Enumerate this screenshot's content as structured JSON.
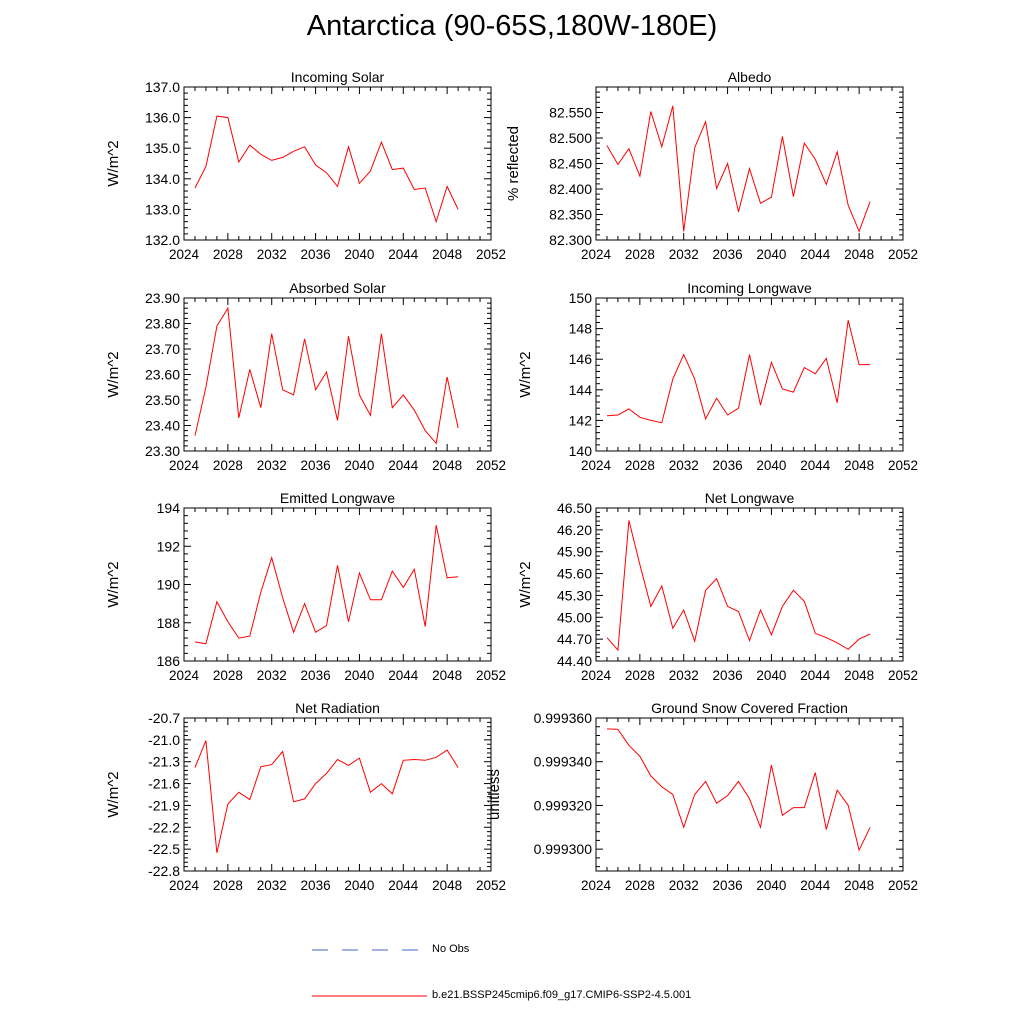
{
  "figure_title": "Antarctica (90-65S,180W-180E)",
  "legend": {
    "obs_label": "No Obs",
    "model_label": "b.e21.BSSP245cmip6.f09_g17.CMIP6-SSP2-4.5.001",
    "obs_color": "#4466cc",
    "model_color": "#ff0000"
  },
  "chart_data": [
    {
      "type": "line",
      "title": "Incoming Solar",
      "ylabel": "W/m^2",
      "xlim": [
        2024,
        2052
      ],
      "ylim": [
        132.0,
        137.0
      ],
      "xticks": [
        "2024",
        "2028",
        "2032",
        "2036",
        "2040",
        "2044",
        "2048",
        "2052"
      ],
      "yticks": [
        "132.0",
        "133.0",
        "134.0",
        "135.0",
        "136.0",
        "137.0"
      ],
      "series": [
        {
          "x": [
            2025,
            2026,
            2027,
            2028,
            2029,
            2030,
            2031,
            2032,
            2033,
            2034,
            2035,
            2036,
            2037,
            2038,
            2039,
            2040,
            2041,
            2042,
            2043,
            2044,
            2045,
            2046,
            2047,
            2048,
            2049
          ],
          "values": [
            133.7,
            134.4,
            136.05,
            136.0,
            134.55,
            135.1,
            134.8,
            134.6,
            134.7,
            134.9,
            135.05,
            134.45,
            134.2,
            133.75,
            135.05,
            133.85,
            134.25,
            135.2,
            134.3,
            134.35,
            133.65,
            133.7,
            132.6,
            133.75,
            133.0
          ]
        }
      ]
    },
    {
      "type": "line",
      "title": "Albedo",
      "ylabel": "% reflected",
      "xlim": [
        2024,
        2052
      ],
      "ylim": [
        82.3,
        82.6
      ],
      "xticks": [
        "2024",
        "2028",
        "2032",
        "2036",
        "2040",
        "2044",
        "2048",
        "2052"
      ],
      "yticks": [
        "82.300",
        "82.350",
        "82.400",
        "82.450",
        "82.500",
        "82.550"
      ],
      "series": [
        {
          "x": [
            2025,
            2026,
            2027,
            2028,
            2029,
            2030,
            2031,
            2032,
            2033,
            2034,
            2035,
            2036,
            2037,
            2038,
            2039,
            2040,
            2041,
            2042,
            2043,
            2044,
            2045,
            2046,
            2047,
            2048,
            2049
          ],
          "values": [
            82.485,
            82.448,
            82.479,
            82.425,
            82.552,
            82.483,
            82.563,
            82.317,
            82.481,
            82.532,
            82.401,
            82.45,
            82.355,
            82.44,
            82.372,
            82.384,
            82.503,
            82.385,
            82.49,
            82.458,
            82.409,
            82.473,
            82.368,
            82.317,
            82.375
          ]
        }
      ]
    },
    {
      "type": "line",
      "title": "Absorbed Solar",
      "ylabel": "W/m^2",
      "xlim": [
        2024,
        2052
      ],
      "ylim": [
        23.3,
        23.9
      ],
      "xticks": [
        "2024",
        "2028",
        "2032",
        "2036",
        "2040",
        "2044",
        "2048",
        "2052"
      ],
      "yticks": [
        "23.30",
        "23.40",
        "23.50",
        "23.60",
        "23.70",
        "23.80",
        "23.90"
      ],
      "series": [
        {
          "x": [
            2025,
            2026,
            2027,
            2028,
            2029,
            2030,
            2031,
            2032,
            2033,
            2034,
            2035,
            2036,
            2037,
            2038,
            2039,
            2040,
            2041,
            2042,
            2043,
            2044,
            2045,
            2046,
            2047,
            2048,
            2049
          ],
          "values": [
            23.36,
            23.55,
            23.79,
            23.86,
            23.43,
            23.62,
            23.47,
            23.76,
            23.54,
            23.52,
            23.74,
            23.54,
            23.61,
            23.42,
            23.75,
            23.52,
            23.44,
            23.76,
            23.47,
            23.52,
            23.46,
            23.38,
            23.33,
            23.59,
            23.39
          ]
        }
      ]
    },
    {
      "type": "line",
      "title": "Incoming Longwave",
      "ylabel": "W/m^2",
      "xlim": [
        2024,
        2052
      ],
      "ylim": [
        140,
        150
      ],
      "xticks": [
        "2024",
        "2028",
        "2032",
        "2036",
        "2040",
        "2044",
        "2048",
        "2052"
      ],
      "yticks": [
        "140",
        "142",
        "144",
        "146",
        "148",
        "150"
      ],
      "series": [
        {
          "x": [
            2025,
            2026,
            2027,
            2028,
            2029,
            2030,
            2031,
            2032,
            2033,
            2034,
            2035,
            2036,
            2037,
            2038,
            2039,
            2040,
            2041,
            2042,
            2043,
            2044,
            2045,
            2046,
            2047,
            2048,
            2049
          ],
          "values": [
            142.3,
            142.35,
            142.75,
            142.2,
            142.0,
            141.85,
            144.7,
            146.3,
            144.7,
            142.1,
            143.45,
            142.35,
            142.8,
            146.3,
            143.0,
            145.8,
            144.05,
            143.85,
            145.45,
            145.05,
            146.05,
            143.15,
            148.55,
            145.65,
            145.65
          ]
        }
      ]
    },
    {
      "type": "line",
      "title": "Emitted Longwave",
      "ylabel": "W/m^2",
      "xlim": [
        2024,
        2052
      ],
      "ylim": [
        186,
        194
      ],
      "xticks": [
        "2024",
        "2028",
        "2032",
        "2036",
        "2040",
        "2044",
        "2048",
        "2052"
      ],
      "yticks": [
        "186",
        "188",
        "190",
        "192",
        "194"
      ],
      "series": [
        {
          "x": [
            2025,
            2026,
            2027,
            2028,
            2029,
            2030,
            2031,
            2032,
            2033,
            2034,
            2035,
            2036,
            2037,
            2038,
            2039,
            2040,
            2041,
            2042,
            2043,
            2044,
            2045,
            2046,
            2047,
            2048,
            2049
          ],
          "values": [
            187.0,
            186.9,
            189.1,
            188.05,
            187.2,
            187.3,
            189.6,
            191.4,
            189.3,
            187.5,
            189.0,
            187.5,
            187.85,
            191.0,
            188.05,
            190.6,
            189.2,
            189.2,
            190.7,
            189.85,
            190.8,
            187.8,
            193.1,
            190.35,
            190.4
          ]
        }
      ]
    },
    {
      "type": "line",
      "title": "Net Longwave",
      "ylabel": "W/m^2",
      "xlim": [
        2024,
        2052
      ],
      "ylim": [
        44.4,
        46.5
      ],
      "xticks": [
        "2024",
        "2028",
        "2032",
        "2036",
        "2040",
        "2044",
        "2048",
        "2052"
      ],
      "yticks": [
        "44.40",
        "44.70",
        "45.00",
        "45.30",
        "45.60",
        "45.90",
        "46.20",
        "46.50"
      ],
      "series": [
        {
          "x": [
            2025,
            2026,
            2027,
            2028,
            2029,
            2030,
            2031,
            2032,
            2033,
            2034,
            2035,
            2036,
            2037,
            2038,
            2039,
            2040,
            2041,
            2042,
            2043,
            2044,
            2045,
            2046,
            2047,
            2048,
            2049
          ],
          "values": [
            44.72,
            44.55,
            46.33,
            45.72,
            45.15,
            45.43,
            44.85,
            45.1,
            44.67,
            45.37,
            45.53,
            45.15,
            45.08,
            44.68,
            45.1,
            44.76,
            45.15,
            45.37,
            45.22,
            44.78,
            44.72,
            44.65,
            44.56,
            44.7,
            44.77
          ]
        }
      ]
    },
    {
      "type": "line",
      "title": "Net Radiation",
      "ylabel": "W/m^2",
      "xlim": [
        2024,
        2052
      ],
      "ylim": [
        -22.8,
        -20.7
      ],
      "xticks": [
        "2024",
        "2028",
        "2032",
        "2036",
        "2040",
        "2044",
        "2048",
        "2052"
      ],
      "yticks": [
        "-22.8",
        "-22.5",
        "-22.2",
        "-21.9",
        "-21.6",
        "-21.3",
        "-21.0",
        "-20.7"
      ],
      "series": [
        {
          "x": [
            2025,
            2026,
            2027,
            2028,
            2029,
            2030,
            2031,
            2032,
            2033,
            2034,
            2035,
            2036,
            2037,
            2038,
            2039,
            2040,
            2041,
            2042,
            2043,
            2044,
            2045,
            2046,
            2047,
            2048,
            2049
          ],
          "values": [
            -21.38,
            -21.01,
            -22.55,
            -21.88,
            -21.72,
            -21.82,
            -21.37,
            -21.34,
            -21.16,
            -21.85,
            -21.81,
            -21.6,
            -21.46,
            -21.27,
            -21.35,
            -21.25,
            -21.72,
            -21.6,
            -21.74,
            -21.28,
            -21.27,
            -21.28,
            -21.24,
            -21.14,
            -21.38
          ]
        }
      ]
    },
    {
      "type": "line",
      "title": "Ground Snow Covered Fraction",
      "ylabel": "unitless",
      "xlim": [
        2024,
        2052
      ],
      "ylim": [
        0.99929,
        0.99936
      ],
      "xticks": [
        "2024",
        "2028",
        "2032",
        "2036",
        "2040",
        "2044",
        "2048",
        "2052"
      ],
      "yticks": [
        "0.999300",
        "0.999320",
        "0.999340",
        "0.999360"
      ],
      "series": [
        {
          "x": [
            2025,
            2026,
            2027,
            2028,
            2029,
            2030,
            2031,
            2032,
            2033,
            2034,
            2035,
            2036,
            2037,
            2038,
            2039,
            2040,
            2041,
            2042,
            2043,
            2044,
            2045,
            2046,
            2047,
            2048,
            2049
          ],
          "values": [
            0.999355,
            0.9993548,
            0.9993475,
            0.9993425,
            0.9993335,
            0.9993285,
            0.999325,
            0.99931,
            0.999325,
            0.999331,
            0.999321,
            0.9993245,
            0.999331,
            0.999323,
            0.99931,
            0.9993385,
            0.9993155,
            0.999319,
            0.999319,
            0.999335,
            0.999309,
            0.999327,
            0.99932,
            0.9992995,
            0.99931
          ]
        }
      ]
    }
  ]
}
